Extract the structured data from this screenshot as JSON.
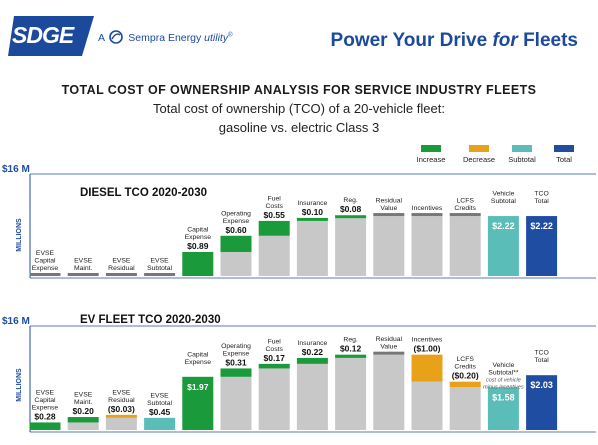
{
  "header": {
    "logo_text": "SDGE",
    "sempra_prefix": "A",
    "sempra_name": "Sempra Energy",
    "sempra_suffix": "utility",
    "sempra_reg": "®",
    "tagline_a": "Power Your Drive ",
    "tagline_b": "for",
    "tagline_c": " Fleets"
  },
  "title": "TOTAL COST OF OWNERSHIP ANALYSIS FOR SERVICE INDUSTRY FLEETS",
  "subtitle_line1": "Total cost of ownership (TCO) of a 20-vehicle fleet:",
  "subtitle_line2": "gasoline vs. electric Class 3",
  "legend": [
    {
      "label": "Increase",
      "color": "#1a9a3a"
    },
    {
      "label": "Decrease",
      "color": "#e8a21a"
    },
    {
      "label": "Subtotal",
      "color": "#5bbdb8"
    },
    {
      "label": "Total",
      "color": "#1f4da1"
    }
  ],
  "colors": {
    "base": "#c8c8c8",
    "axis_cap": "#777777",
    "axis_line": "#1f4da1"
  },
  "chart_data": [
    {
      "type": "bar",
      "title": "DIESEL TCO 2020-2030",
      "ylabel": "MILLIONS",
      "ytick_label": "$16 M",
      "ylim": [
        0,
        16
      ],
      "categories": [
        "EVSE Capital Expense",
        "EVSE Maint.",
        "EVSE Residual",
        "EVSE Subtotal",
        "Capital Expense",
        "Operating Expense",
        "Fuel Costs",
        "Insurance",
        "Reg.",
        "Residual Value",
        "Incentives",
        "LCFS Credits",
        "Vehicle Subtotal",
        "TCO Total"
      ],
      "labels": [
        [
          "EVSE",
          "Capital",
          "Expense"
        ],
        [
          "EVSE",
          "Maint."
        ],
        [
          "EVSE",
          "Residual"
        ],
        [
          "EVSE",
          "Subtotal"
        ],
        [
          "Capital",
          "Expense"
        ],
        [
          "Operating",
          "Expense"
        ],
        [
          "Fuel",
          "Costs"
        ],
        [
          "Insurance"
        ],
        [
          "Reg."
        ],
        [
          "Residual",
          "Value"
        ],
        [
          "Incentives"
        ],
        [
          "LCFS",
          "Credits"
        ],
        [
          "Vehicle",
          "Subtotal"
        ],
        [
          "TCO",
          "Total"
        ]
      ],
      "values": [
        0,
        0,
        0,
        0,
        0.89,
        0.6,
        0.55,
        0.1,
        0.08,
        0,
        0,
        0,
        2.22,
        2.22
      ],
      "value_labels": [
        "",
        "",
        "",
        "",
        "$0.89",
        "$0.60",
        "$0.55",
        "$0.10",
        "$0.08",
        "",
        "",
        "",
        "$2.22",
        "$2.22"
      ],
      "kinds": [
        "increase",
        "increase",
        "decrease",
        "subtotal",
        "increase",
        "increase",
        "increase",
        "increase",
        "increase",
        "decrease",
        "decrease",
        "decrease",
        "subtotal",
        "total"
      ]
    },
    {
      "type": "bar",
      "title": "EV FLEET TCO 2020-2030",
      "ylabel": "MILLIONS",
      "ytick_label": "$16 M",
      "ylim": [
        0,
        16
      ],
      "categories": [
        "EVSE Capital Expense",
        "EVSE Maint.",
        "EVSE Residual",
        "EVSE Subtotal",
        "Capital Expense",
        "Operating Expense",
        "Fuel Costs",
        "Insurance",
        "Reg.",
        "Residual Value",
        "Incentives",
        "LCFS Credits",
        "Vehicle Subtotal**",
        "TCO Total"
      ],
      "labels": [
        [
          "EVSE",
          "Capital",
          "Expense"
        ],
        [
          "EVSE",
          "Maint."
        ],
        [
          "EVSE",
          "Residual"
        ],
        [
          "EVSE",
          "Subtotal"
        ],
        [
          "Capital",
          "Expense"
        ],
        [
          "Operating",
          "Expense"
        ],
        [
          "Fuel",
          "Costs"
        ],
        [
          "Insurance"
        ],
        [
          "Reg."
        ],
        [
          "Residual",
          "Value"
        ],
        [
          "Incentives"
        ],
        [
          "LCFS",
          "Credits"
        ],
        [
          "Vehicle",
          "Subtotal**"
        ],
        [
          "TCO",
          "Total"
        ]
      ],
      "values": [
        0.28,
        0.2,
        -0.03,
        0.45,
        1.97,
        0.31,
        0.17,
        0.22,
        0.12,
        0,
        -1.0,
        -0.2,
        1.58,
        2.03
      ],
      "value_labels": [
        "$0.28",
        "$0.20",
        "($0.03)",
        "$0.45",
        "$1.97",
        "$0.31",
        "$0.17",
        "$0.22",
        "$0.12",
        "",
        "($1.00)",
        "($0.20)",
        "$1.58",
        "$2.03"
      ],
      "kinds": [
        "increase",
        "increase",
        "decrease",
        "subtotal",
        "increase",
        "increase",
        "increase",
        "increase",
        "increase",
        "decrease",
        "decrease",
        "decrease",
        "subtotal",
        "total"
      ],
      "note": [
        "cost of vehicle",
        "minus incentives"
      ]
    }
  ]
}
